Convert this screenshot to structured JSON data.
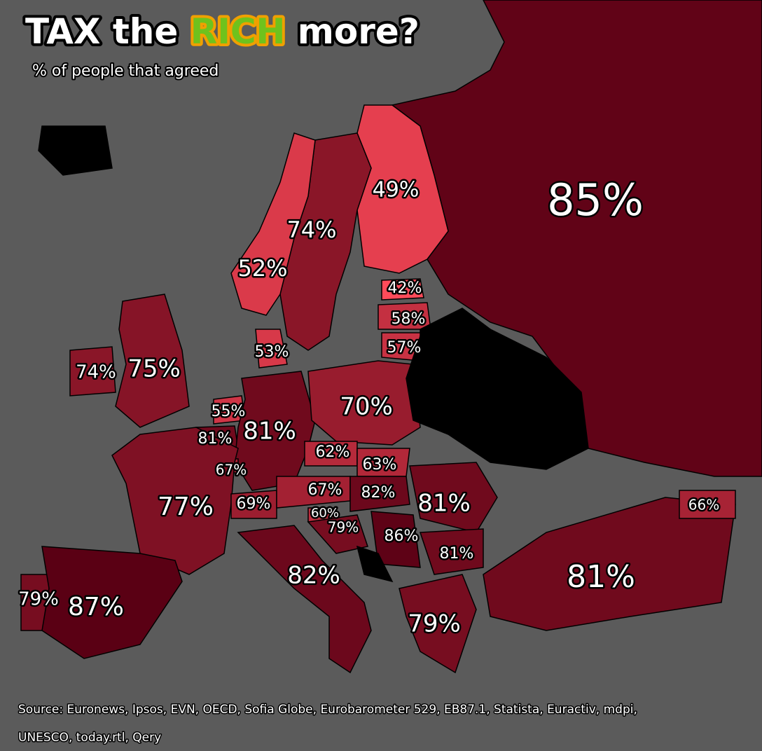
{
  "chart_data": {
    "type": "choropleth",
    "title_start": "TAX the",
    "title_highlight": "RICH",
    "title_end": "more?",
    "subtitle": "% of people that agreed",
    "source_line1": "Source: Euronews, Ipsos, EVN, OECD, Sofia Globe, Eurobarometer 529, EB87.1, Statista, Euractiv, mdpi,",
    "source_line2": "UNESCO, today.rtl, Qery",
    "values": [
      85,
      49,
      74,
      52,
      42,
      58,
      57,
      53,
      74,
      75,
      55,
      81,
      81,
      70,
      62,
      63,
      67,
      77,
      69,
      67,
      82,
      81,
      60,
      79,
      86,
      81,
      82,
      79,
      81,
      66,
      79,
      87
    ],
    "value_labels": [
      "85%",
      "49%",
      "74%",
      "52%",
      "42%",
      "58%",
      "57%",
      "53%",
      "74%",
      "75%",
      "55%",
      "81%",
      "81%",
      "70%",
      "62%",
      "63%",
      "67%",
      "77%",
      "69%",
      "67%",
      "82%",
      "81%",
      "60%",
      "79%",
      "86%",
      "81%",
      "82%",
      "79%",
      "81%",
      "66%",
      "79%",
      "87%"
    ]
  }
}
